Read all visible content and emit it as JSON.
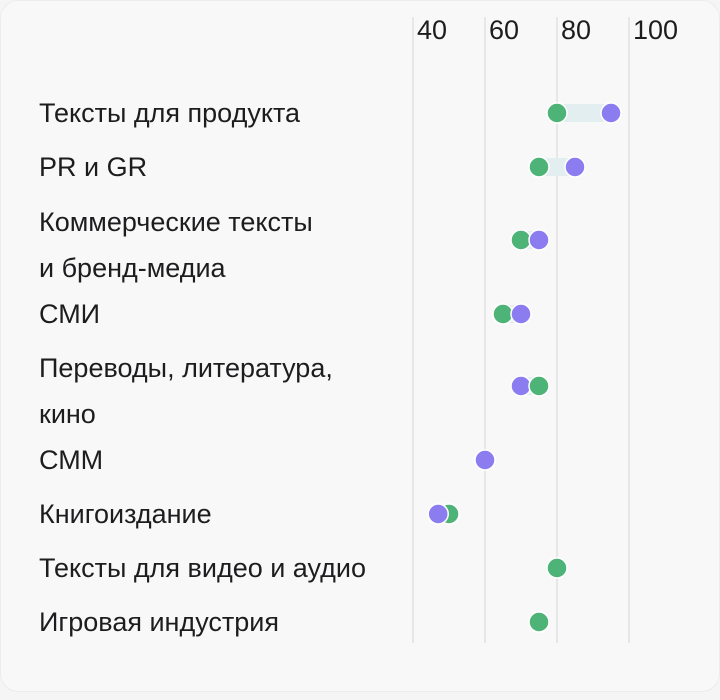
{
  "chart_data": {
    "type": "dumbbell",
    "x_ticks": [
      40,
      60,
      80,
      100
    ],
    "xlim": [
      40,
      100
    ],
    "colors": {
      "green": "#4db377",
      "purple": "#8b7cf0",
      "connector": "#e2eef0",
      "grid": "#d6d6d6"
    },
    "categories": [
      {
        "label_lines": [
          "Тексты для продукта"
        ],
        "green": 80,
        "purple": 95
      },
      {
        "label_lines": [
          "PR и GR"
        ],
        "green": 75,
        "purple": 85
      },
      {
        "label_lines": [
          "Коммерческие тексты",
          "и бренд-медиа"
        ],
        "green": 70,
        "purple": 75
      },
      {
        "label_lines": [
          "СМИ"
        ],
        "green": 65,
        "purple": 70
      },
      {
        "label_lines": [
          "Переводы, литература,",
          "кино"
        ],
        "green": 75,
        "purple": 70
      },
      {
        "label_lines": [
          "СММ"
        ],
        "green": null,
        "purple": 60
      },
      {
        "label_lines": [
          "Книгоиздание"
        ],
        "green": 50,
        "purple": 47
      },
      {
        "label_lines": [
          "Тексты для видео и аудио"
        ],
        "green": 80,
        "purple": null
      },
      {
        "label_lines": [
          "Игровая индустрия"
        ],
        "green": 75,
        "purple": null
      }
    ]
  }
}
